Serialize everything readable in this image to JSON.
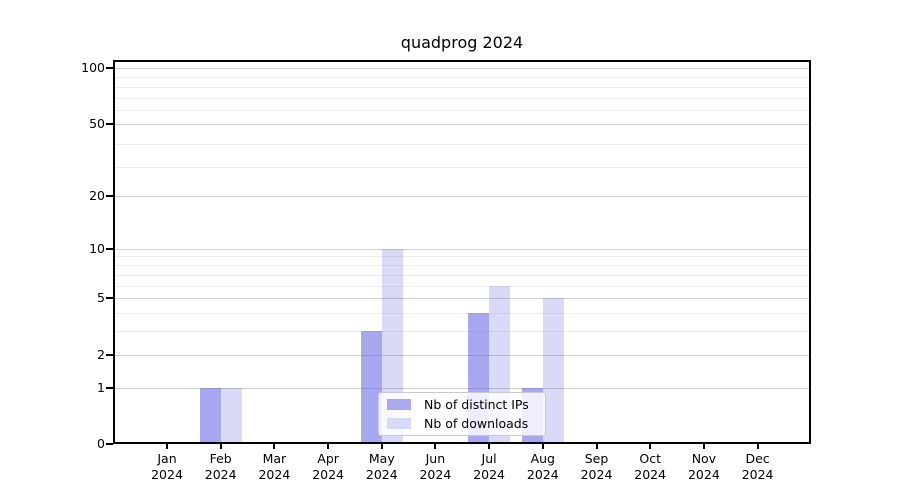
{
  "chart_data": {
    "type": "bar",
    "title": "quadprog 2024",
    "categories": [
      "Jan",
      "Feb",
      "Mar",
      "Apr",
      "May",
      "Jun",
      "Jul",
      "Aug",
      "Sep",
      "Oct",
      "Nov",
      "Dec"
    ],
    "x_sublabel": "2024",
    "series": [
      {
        "name": "Nb of distinct IPs",
        "fill_color": "rgba(81,81,225,0.50)",
        "legend_color": "#a9a9f0",
        "values": [
          0,
          1,
          0,
          0,
          3,
          0,
          4,
          1,
          0,
          0,
          0,
          0
        ]
      },
      {
        "name": "Nb of downloads",
        "fill_color": "rgba(81,81,225,0.22)",
        "legend_color": "#d9d9f7",
        "values": [
          0,
          1,
          0,
          0,
          10,
          0,
          6,
          5,
          0,
          0,
          0,
          0
        ]
      }
    ],
    "y_axis": {
      "ticks": [
        0,
        1,
        2,
        5,
        10,
        20,
        50,
        100
      ],
      "scale": "log1p",
      "range_top": 110
    },
    "x_axis": {
      "ticks_count": 12
    },
    "legend": {
      "position": "lower center"
    },
    "grid": true,
    "colors": {
      "axis": "#000000",
      "grid_major": "#cfcfcf",
      "grid_minor": "#ededed",
      "background": "#ffffff"
    }
  }
}
